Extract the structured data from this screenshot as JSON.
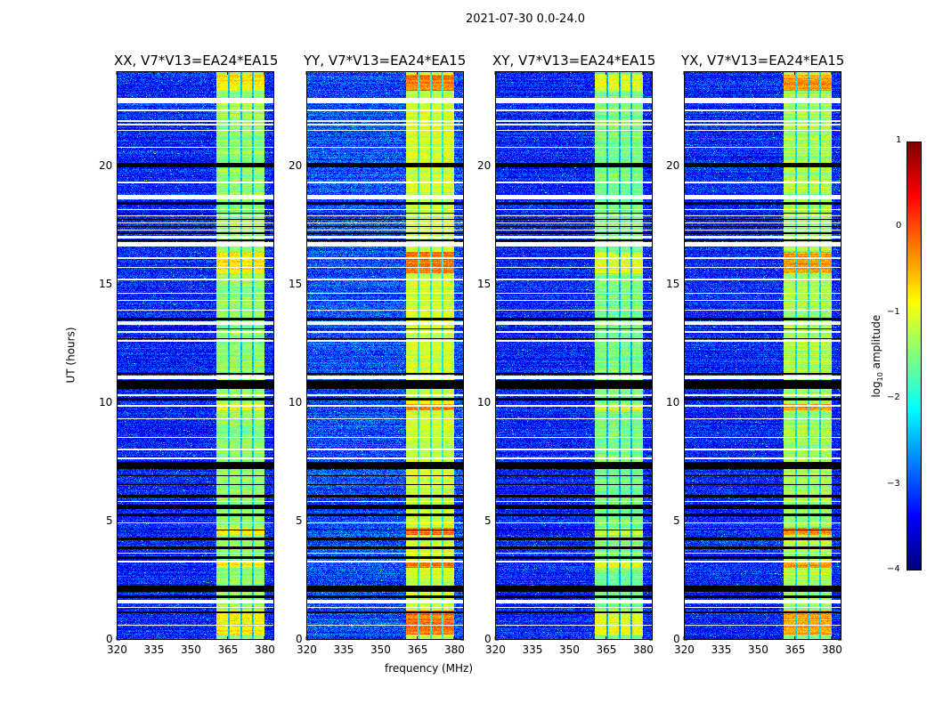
{
  "chart_data": {
    "type": "heatmap",
    "suptitle": "2021-07-30 0.0-24.0",
    "xlabel": "frequency (MHz)",
    "ylabel": "UT (hours)",
    "xlim": [
      320,
      384
    ],
    "ylim": [
      0,
      24
    ],
    "xticks": [
      "320",
      "335",
      "350",
      "365",
      "380"
    ],
    "yticks": [
      "0",
      "5",
      "10",
      "15",
      "20"
    ],
    "colorbar": {
      "label": "log10 amplitude",
      "label_main": "log",
      "label_sub": "10",
      "label_rest": " amplitude",
      "range": [
        -4,
        1
      ],
      "ticks": [
        "1",
        "0",
        "−1",
        "−2",
        "−3",
        "−4"
      ],
      "colormap": "jet"
    },
    "panels": [
      {
        "title": "XX, V7*V13=EA24*EA15",
        "background_level": -3.2,
        "band_level": -1.4,
        "hot_level": -0.8
      },
      {
        "title": "YY, V7*V13=EA24*EA15",
        "background_level": -3.0,
        "band_level": -1.1,
        "hot_level": -0.2
      },
      {
        "title": "XY, V7*V13=EA24*EA15",
        "background_level": -3.2,
        "band_level": -1.5,
        "hot_level": -1.0
      },
      {
        "title": "YX, V7*V13=EA24*EA15",
        "background_level": -3.2,
        "band_level": -1.3,
        "hot_level": -0.4
      }
    ],
    "band_segments_mhz": [
      [
        360.5,
        365.5
      ],
      [
        366.2,
        370.6
      ],
      [
        371.3,
        375.3
      ],
      [
        376.0,
        380.3
      ]
    ],
    "hot_times_hours": [
      [
        9.7,
        9.95
      ],
      [
        15.5,
        16.4
      ],
      [
        3.0,
        3.3
      ],
      [
        0.2,
        1.2
      ],
      [
        23.2,
        23.9
      ],
      [
        4.4,
        4.7
      ]
    ],
    "flagged_white_hours": [
      [
        22.7,
        22.9
      ],
      [
        22.35,
        22.4
      ],
      [
        21.9,
        21.95
      ],
      [
        21.75,
        21.8
      ],
      [
        21.5,
        21.55
      ],
      [
        20.8,
        20.85
      ],
      [
        19.3,
        19.35
      ],
      [
        18.6,
        18.8
      ],
      [
        18.15,
        18.2
      ],
      [
        17.9,
        17.95
      ],
      [
        17.6,
        17.65
      ],
      [
        17.3,
        17.35
      ],
      [
        16.95,
        17.05
      ],
      [
        16.6,
        16.8
      ],
      [
        16.1,
        16.15
      ],
      [
        15.7,
        15.75
      ],
      [
        15.2,
        15.25
      ],
      [
        14.6,
        14.65
      ],
      [
        14.3,
        14.35
      ],
      [
        13.9,
        13.95
      ],
      [
        13.3,
        13.45
      ],
      [
        12.95,
        13.05
      ],
      [
        12.6,
        12.65
      ],
      [
        11.0,
        11.15
      ],
      [
        10.3,
        10.35
      ],
      [
        9.85,
        9.9
      ],
      [
        9.3,
        9.35
      ],
      [
        8.5,
        8.55
      ],
      [
        8.0,
        8.05
      ],
      [
        7.6,
        7.7
      ],
      [
        5.8,
        5.85
      ],
      [
        4.9,
        4.95
      ],
      [
        3.6,
        3.65
      ],
      [
        3.25,
        3.3
      ],
      [
        1.5,
        1.65
      ],
      [
        1.3,
        1.35
      ],
      [
        0.55,
        0.6
      ]
    ],
    "flagged_black_hours": [
      [
        19.95,
        20.15
      ],
      [
        18.4,
        18.5
      ],
      [
        18.0,
        18.05
      ],
      [
        17.75,
        17.8
      ],
      [
        17.45,
        17.5
      ],
      [
        17.15,
        17.2
      ],
      [
        16.85,
        16.9
      ],
      [
        13.5,
        13.6
      ],
      [
        13.1,
        13.15
      ],
      [
        12.7,
        12.75
      ],
      [
        11.2,
        11.25
      ],
      [
        10.6,
        10.95
      ],
      [
        10.1,
        10.2
      ],
      [
        7.2,
        7.5
      ],
      [
        6.9,
        6.95
      ],
      [
        6.5,
        6.55
      ],
      [
        6.0,
        6.1
      ],
      [
        5.5,
        5.7
      ],
      [
        5.2,
        5.3
      ],
      [
        4.6,
        4.65
      ],
      [
        4.2,
        4.3
      ],
      [
        3.8,
        3.9
      ],
      [
        3.4,
        3.5
      ],
      [
        2.0,
        2.25
      ],
      [
        1.75,
        1.85
      ],
      [
        1.1,
        1.15
      ]
    ]
  }
}
